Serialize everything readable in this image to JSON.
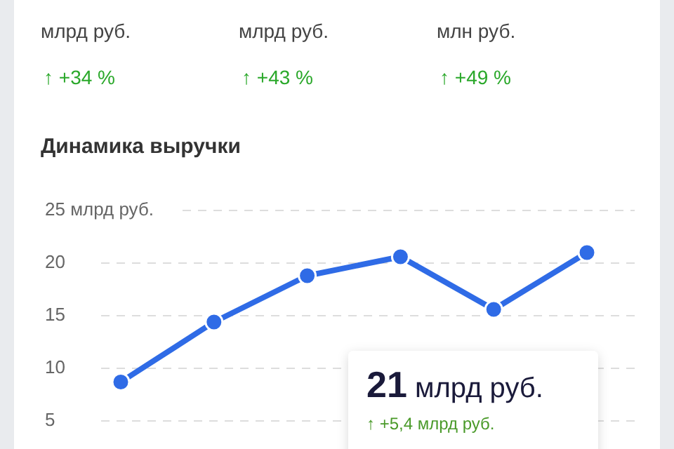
{
  "chart_data": {
    "type": "line",
    "title": "Динамика выручки",
    "categories": [
      null,
      null,
      null,
      null,
      null,
      null
    ],
    "series": [
      {
        "color": "#2f6be6",
        "values": [
          8.7,
          14.4,
          18.8,
          20.6,
          15.6,
          21
        ]
      }
    ],
    "ylim": [
      5,
      25
    ],
    "yticks": [
      5,
      10,
      15,
      20,
      {
        "value": 25,
        "label": "25 млрд руб."
      }
    ],
    "grid": "y",
    "marker": "circle",
    "line_style": "solid",
    "tick_labels": "y",
    "annotations": [
      "млрд руб.",
      "↑ +34 %",
      "млрд руб.",
      "↑ +43 %",
      "млн руб.",
      "↑ +49 %",
      "21 млрд руб.",
      "↑ +5,4 млрд руб."
    ]
  }
}
